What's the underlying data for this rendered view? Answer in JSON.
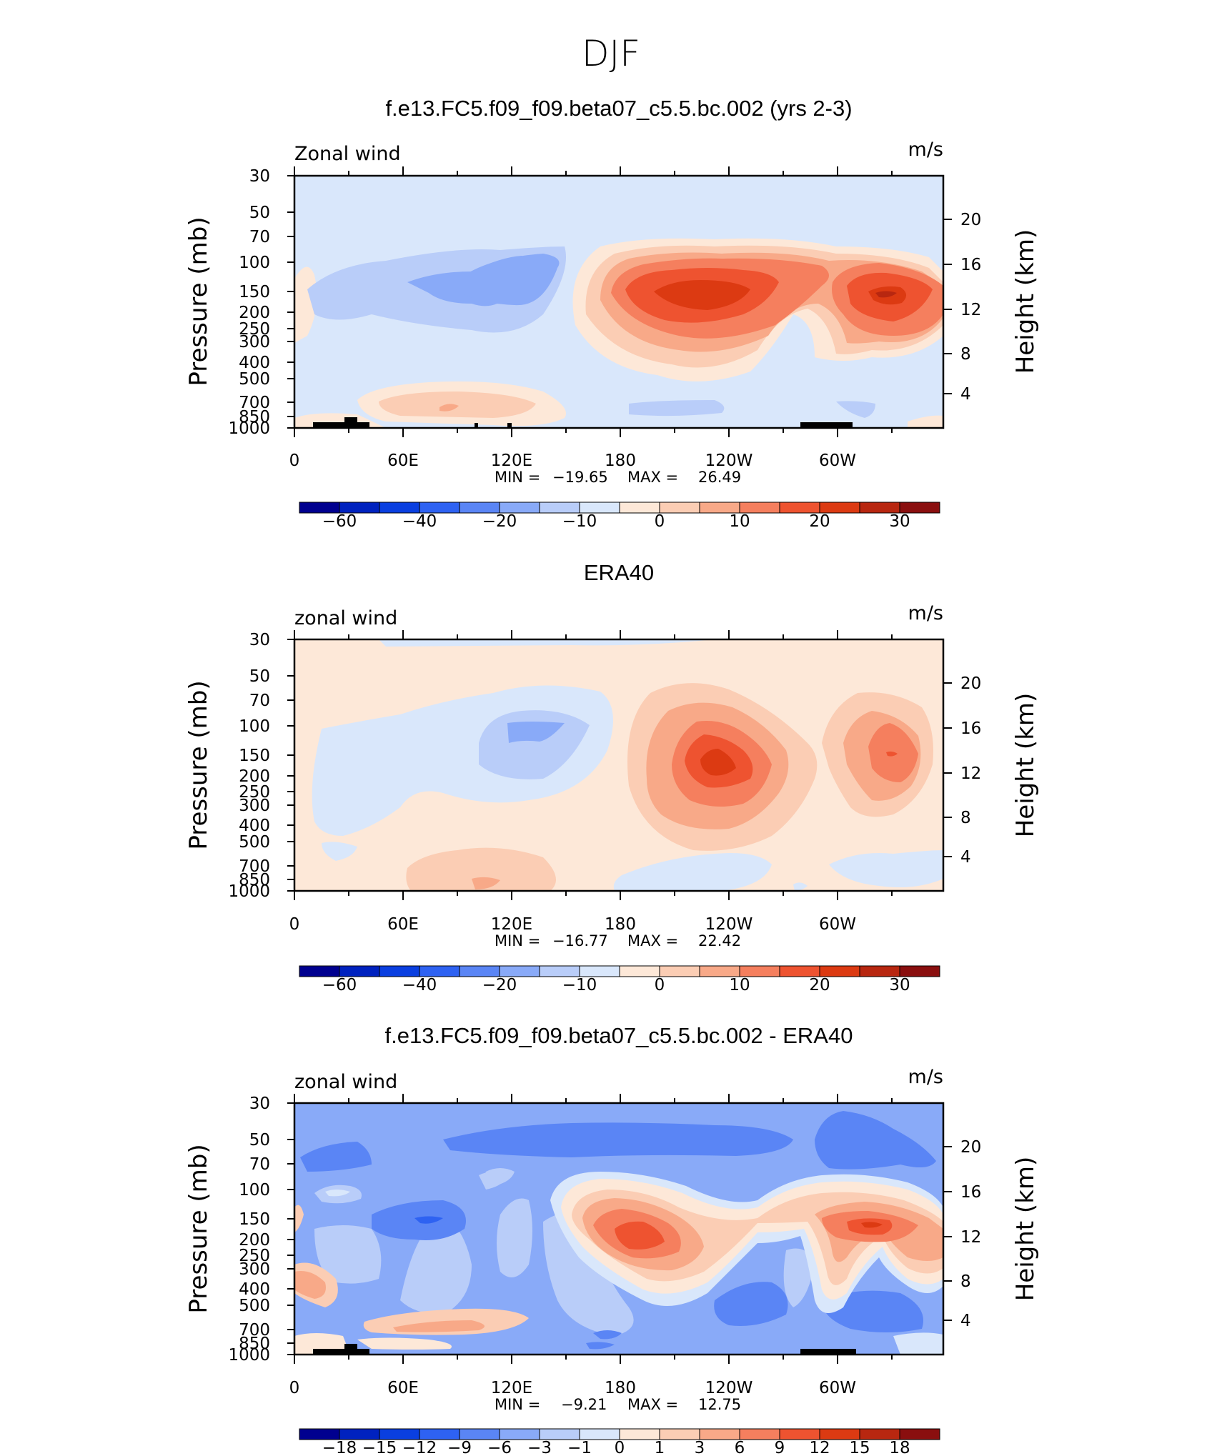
{
  "main_title": "DJF",
  "colors": {
    "palette_blue_to_red": [
      "#00008f",
      "#0022bf",
      "#0a3fe0",
      "#2e62f2",
      "#5a85f5",
      "#89aaf8",
      "#b9cdf9",
      "#d9e7fb",
      "#fde8d8",
      "#fbcdb4",
      "#f8a988",
      "#f57f5e",
      "#ee5330",
      "#dc3a12",
      "#b82710",
      "#8a0f0f"
    ]
  },
  "chart_data": [
    {
      "type": "heatmap",
      "title": "f.e13.FC5.f09_f09.beta07_c5.5.bc.002 (yrs 2-3)",
      "left_string": "Zonal wind",
      "right_string": "m/s",
      "ylabel": "Pressure (mb)",
      "ylabel_right": "Height (km)",
      "y_ticks": [
        "30",
        "50",
        "70",
        "100",
        "150",
        "200",
        "250",
        "300",
        "400",
        "500",
        "700",
        "850",
        "1000"
      ],
      "y_right_ticks": [
        "20",
        "16",
        "12",
        "8",
        "4"
      ],
      "x_ticks": [
        "0",
        "60E",
        "120E",
        "180",
        "120W",
        "60W"
      ],
      "stats": {
        "min_label": "MIN =",
        "min": "−19.65",
        "max_label": "MAX =",
        "max": "26.49"
      },
      "colorbar_levels": [
        "−60",
        "−40",
        "−20",
        "−10",
        "0",
        "10",
        "20",
        "30"
      ],
      "data_range": [
        -19.65,
        26.49
      ]
    },
    {
      "type": "heatmap",
      "title": "ERA40",
      "left_string": "zonal wind",
      "right_string": "m/s",
      "ylabel": "Pressure (mb)",
      "ylabel_right": "Height (km)",
      "y_ticks": [
        "30",
        "50",
        "70",
        "100",
        "150",
        "200",
        "250",
        "300",
        "400",
        "500",
        "700",
        "850",
        "1000"
      ],
      "y_right_ticks": [
        "20",
        "16",
        "12",
        "8",
        "4"
      ],
      "x_ticks": [
        "0",
        "60E",
        "120E",
        "180",
        "120W",
        "60W"
      ],
      "stats": {
        "min_label": "MIN =",
        "min": "−16.77",
        "max_label": "MAX =",
        "max": "22.42"
      },
      "colorbar_levels": [
        "−60",
        "−40",
        "−20",
        "−10",
        "0",
        "10",
        "20",
        "30"
      ],
      "data_range": [
        -16.77,
        22.42
      ]
    },
    {
      "type": "heatmap",
      "title": "f.e13.FC5.f09_f09.beta07_c5.5.bc.002 - ERA40",
      "left_string": "zonal wind",
      "right_string": "m/s",
      "ylabel": "Pressure (mb)",
      "ylabel_right": "Height (km)",
      "y_ticks": [
        "30",
        "50",
        "70",
        "100",
        "150",
        "200",
        "250",
        "300",
        "400",
        "500",
        "700",
        "850",
        "1000"
      ],
      "y_right_ticks": [
        "20",
        "16",
        "12",
        "8",
        "4"
      ],
      "x_ticks": [
        "0",
        "60E",
        "120E",
        "180",
        "120W",
        "60W"
      ],
      "stats": {
        "min_label": "MIN =",
        "min": "−9.21",
        "max_label": "MAX =",
        "max": "12.75"
      },
      "colorbar_levels": [
        "−18",
        "−15",
        "−12",
        "−9",
        "−6",
        "−3",
        "−1",
        "0",
        "1",
        "3",
        "6",
        "9",
        "12",
        "15",
        "18"
      ],
      "data_range": [
        -9.21,
        12.75
      ]
    }
  ]
}
